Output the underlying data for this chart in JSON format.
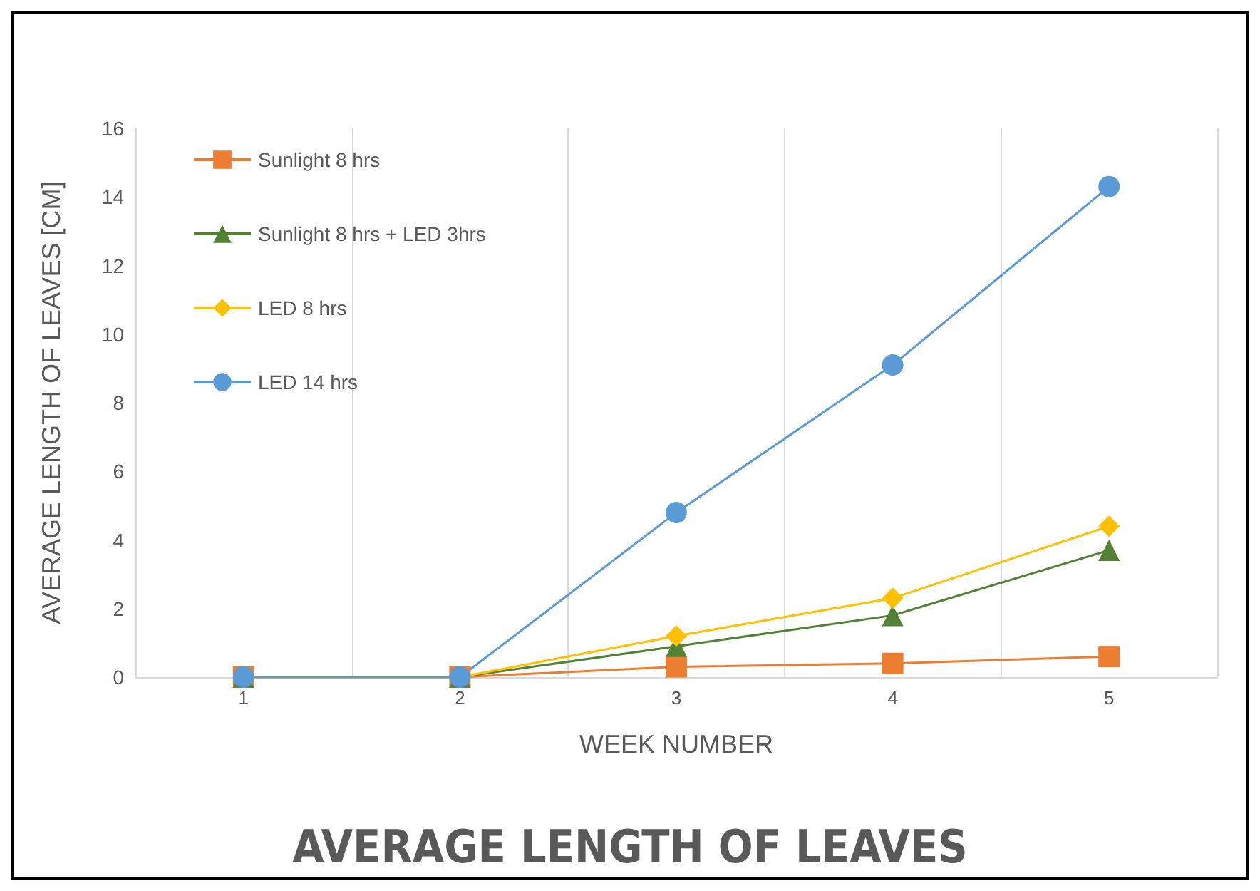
{
  "chart_data": {
    "type": "line",
    "title": "AVERAGE LENGTH OF LEAVES",
    "xlabel": "WEEK NUMBER",
    "ylabel": "AVERAGE LENGTH OF LEAVES [CM]",
    "categories": [
      "1",
      "2",
      "3",
      "4",
      "5"
    ],
    "series": [
      {
        "name": "Sunlight 8 hrs",
        "color": "#ed7d31",
        "marker": "square",
        "values": [
          0,
          0,
          0.3,
          0.4,
          0.6
        ]
      },
      {
        "name": "Sunlight 8 hrs + LED 3hrs",
        "color": "#548235",
        "marker": "triangle",
        "values": [
          0,
          0,
          0.9,
          1.8,
          3.7
        ]
      },
      {
        "name": "LED 8 hrs",
        "color": "#ffc000",
        "marker": "diamond",
        "values": [
          0,
          0,
          1.2,
          2.3,
          4.4
        ]
      },
      {
        "name": "LED 14 hrs",
        "color": "#5b9bd5",
        "marker": "circle",
        "values": [
          0,
          0,
          4.8,
          9.1,
          14.3
        ]
      }
    ],
    "ylim": [
      0,
      16
    ],
    "yticks": [
      0,
      2,
      4,
      6,
      8,
      10,
      12,
      14,
      16
    ],
    "grid": "x",
    "legend": "top left"
  }
}
